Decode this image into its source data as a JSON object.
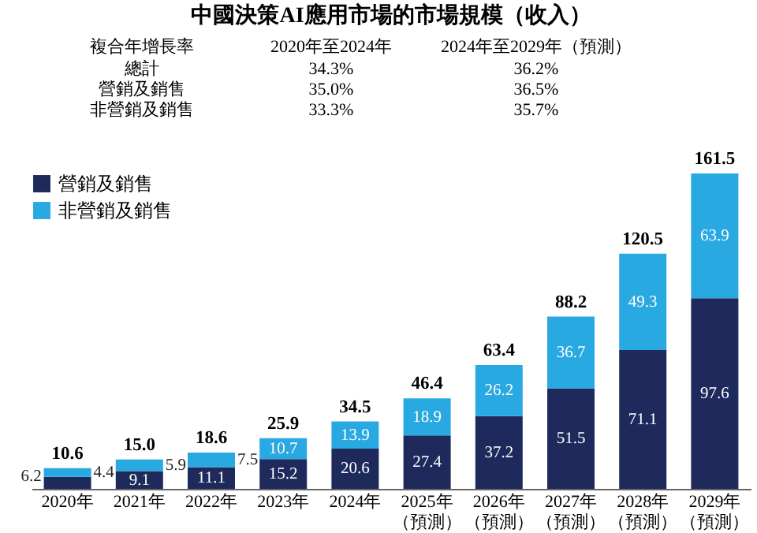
{
  "chart_data": {
    "type": "bar",
    "title": "中國決策AI應用市場的市場規模（收入）",
    "categories": [
      "2020年",
      "2021年",
      "2022年",
      "2023年",
      "2024年",
      "2025年（預測）",
      "2026年（預測）",
      "2027年（預測）",
      "2028年（預測）",
      "2029年（預測）"
    ],
    "stacked": true,
    "data_labels": true,
    "legend": "top left",
    "series": [
      {
        "name": "營銷及銷售",
        "color": "#1f2a5c",
        "values": [
          6.2,
          9.1,
          11.1,
          15.2,
          20.6,
          27.4,
          37.2,
          51.5,
          71.1,
          97.6
        ]
      },
      {
        "name": "非營銷及銷售",
        "color": "#29a9e1",
        "values": [
          4.4,
          5.9,
          7.5,
          10.7,
          13.9,
          18.9,
          26.2,
          36.7,
          49.3,
          63.9
        ]
      }
    ],
    "totals": [
      "10.6",
      "15.0",
      "18.6",
      "25.9",
      "34.5",
      "46.4",
      "63.4",
      "88.2",
      "120.5",
      "161.5"
    ],
    "annotations": [
      "複合年增長率",
      "2020年至2024年",
      "2024年至2029年（預測）",
      "總計",
      "34.3%",
      "36.2%",
      "營銷及銷售",
      "35.0%",
      "36.5%",
      "非營銷及銷售",
      "33.3%",
      "35.7%"
    ]
  }
}
